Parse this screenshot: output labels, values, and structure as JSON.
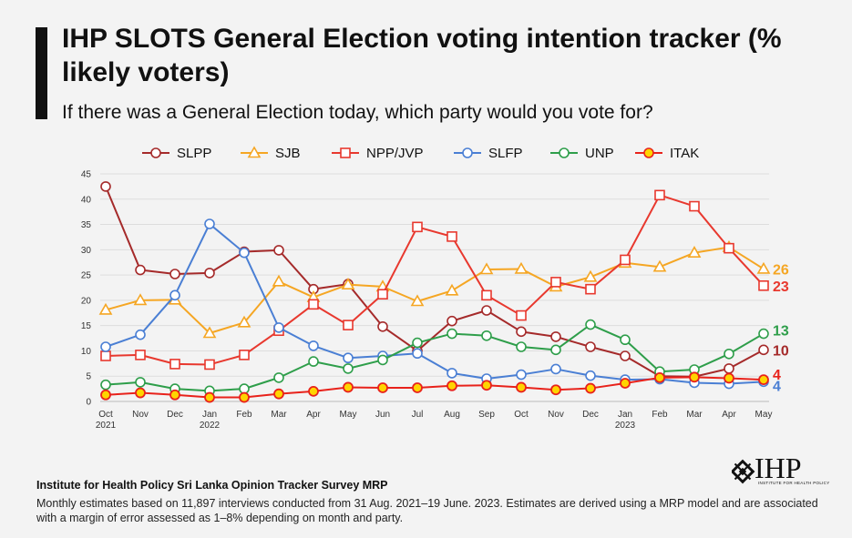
{
  "header": {
    "title": "IHP SLOTS General Election voting intention tracker (% likely voters)",
    "subtitle": "If there was a General Election today, which party would you vote for?"
  },
  "footer": {
    "source_title": "Institute for Health Policy Sri Lanka Opinion Tracker Survey MRP",
    "source_text": "Monthly estimates based on 11,897 interviews conducted from 31 Aug. 2021–19 June. 2023. Estimates are derived using a MRP model and are associated with a margin of error assessed as 1–8% depending on month and party."
  },
  "logo": {
    "text": "IHP",
    "subtext": "INSTITUTE FOR HEALTH POLICY"
  },
  "chart_data": {
    "type": "line",
    "categories": [
      "Oct 2021",
      "Nov",
      "Dec",
      "Jan 2022",
      "Feb",
      "Mar",
      "Apr",
      "May",
      "Jun",
      "Jul",
      "Aug",
      "Sep",
      "Oct",
      "Nov",
      "Dec",
      "Jan 2023",
      "Feb",
      "Mar",
      "Apr",
      "May"
    ],
    "x_tick_labels": [
      [
        "Oct",
        "2021"
      ],
      [
        "Nov"
      ],
      [
        "Dec"
      ],
      [
        "Jan",
        "2022"
      ],
      [
        "Feb"
      ],
      [
        "Mar"
      ],
      [
        "Apr"
      ],
      [
        "May"
      ],
      [
        "Jun"
      ],
      [
        "Jul"
      ],
      [
        "Aug"
      ],
      [
        "Sep"
      ],
      [
        "Oct"
      ],
      [
        "Nov"
      ],
      [
        "Dec"
      ],
      [
        "Jan",
        "2023"
      ],
      [
        "Feb"
      ],
      [
        "Mar"
      ],
      [
        "Apr"
      ],
      [
        "May"
      ]
    ],
    "ylim": [
      0,
      45
    ],
    "y_ticks": [
      0,
      5,
      10,
      15,
      20,
      25,
      30,
      35,
      40,
      45
    ],
    "grid": true,
    "legend_position": "top",
    "series": [
      {
        "name": "SLPP",
        "color": "#a52a2a",
        "marker": "circle",
        "values": [
          42.5,
          26.0,
          25.2,
          25.4,
          29.6,
          29.9,
          22.2,
          23.2,
          14.8,
          10.0,
          15.9,
          18.0,
          13.8,
          12.8,
          10.8,
          9.0,
          5.0,
          4.9,
          6.5,
          10.2
        ],
        "end_label": "10"
      },
      {
        "name": "SJB",
        "color": "#f5a623",
        "marker": "triangle",
        "values": [
          18.1,
          20.0,
          20.1,
          13.5,
          15.6,
          23.7,
          20.6,
          23.1,
          22.7,
          19.8,
          21.9,
          26.1,
          26.2,
          22.7,
          24.6,
          27.4,
          26.6,
          29.4,
          30.5,
          26.2
        ],
        "end_label": "26"
      },
      {
        "name": "NPP/JVP",
        "color": "#e8382e",
        "marker": "square",
        "values": [
          9.0,
          9.2,
          7.4,
          7.3,
          9.2,
          14.0,
          19.2,
          15.1,
          21.2,
          34.5,
          32.6,
          21.0,
          17.0,
          23.6,
          22.2,
          28.0,
          40.8,
          38.6,
          30.3,
          22.9
        ],
        "end_label": "23"
      },
      {
        "name": "SLFP",
        "color": "#4a7fd4",
        "marker": "circle",
        "values": [
          10.8,
          13.2,
          21.0,
          35.1,
          29.4,
          14.6,
          11.0,
          8.6,
          9.0,
          9.5,
          5.6,
          4.5,
          5.3,
          6.4,
          5.1,
          4.3,
          4.4,
          3.7,
          3.5,
          3.9
        ],
        "end_label": "4"
      },
      {
        "name": "UNP",
        "color": "#2e9e4a",
        "marker": "circle",
        "values": [
          3.3,
          3.8,
          2.5,
          2.1,
          2.5,
          4.7,
          7.9,
          6.5,
          8.2,
          11.6,
          13.4,
          13.0,
          10.8,
          10.2,
          15.2,
          12.2,
          5.9,
          6.3,
          9.4,
          13.4
        ],
        "end_label": "13"
      },
      {
        "name": "ITAK",
        "color": "#ffd400",
        "line_color": "#e8221b",
        "marker": "circle",
        "values": [
          1.3,
          1.7,
          1.3,
          0.8,
          0.8,
          1.5,
          2.0,
          2.8,
          2.7,
          2.7,
          3.1,
          3.2,
          2.8,
          2.3,
          2.6,
          3.6,
          4.7,
          4.8,
          4.6,
          4.3
        ],
        "end_label": "4"
      }
    ]
  }
}
